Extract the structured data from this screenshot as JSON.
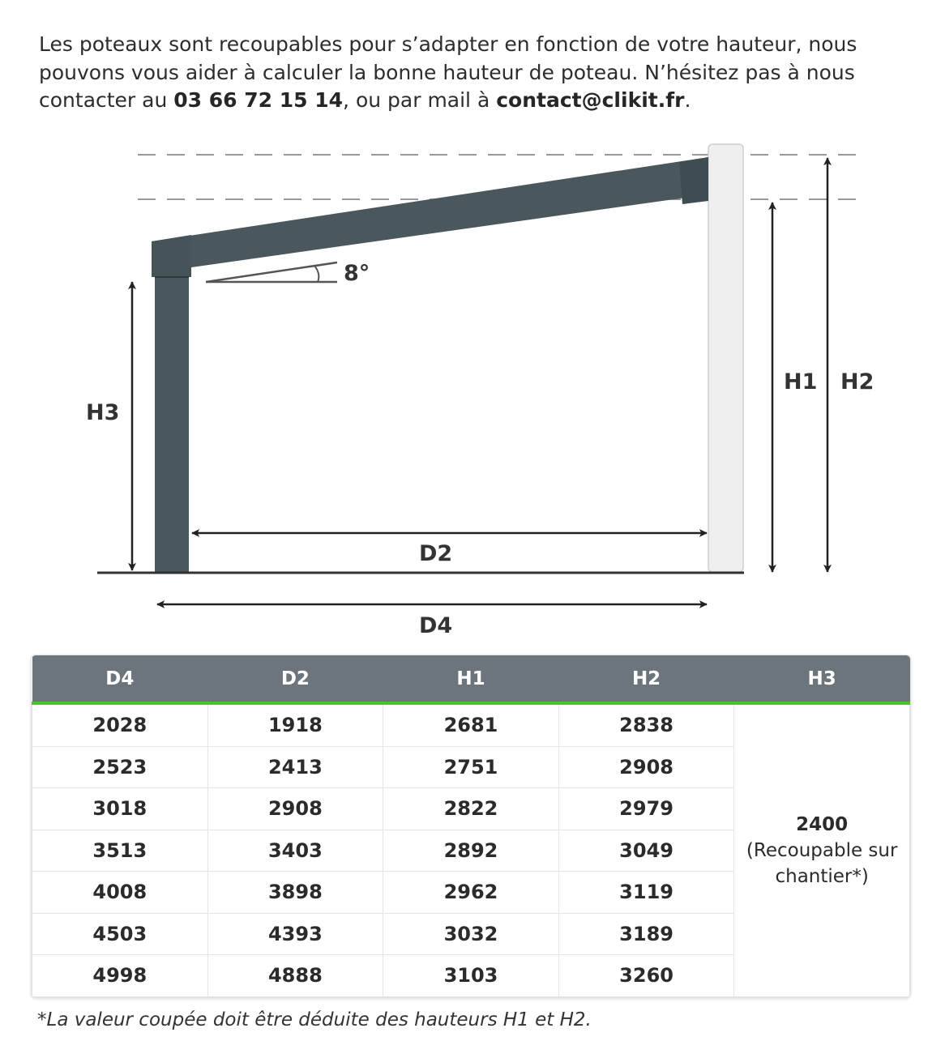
{
  "intro": {
    "text_before_phone": "Les poteaux sont recoupables pour s’adapter en fonction de votre hauteur, nous pouvons vous aider à calculer la bonne hauteur de poteau. N’hésitez pas à nous contacter au ",
    "phone": "03 66 72 15 14",
    "text_between": ", ou par mail à ",
    "email": "contact@clikit.fr",
    "text_after": "."
  },
  "diagram": {
    "angle_label": "8°",
    "labels": {
      "h1": "H1",
      "h2": "H2",
      "h3": "H3",
      "d2": "D2",
      "d4": "D4"
    },
    "colors": {
      "structure": "#4a585e",
      "wall": "#efefef",
      "line": "#222222"
    }
  },
  "table": {
    "headers": [
      "D4",
      "D2",
      "H1",
      "H2",
      "H3"
    ],
    "rows": [
      [
        "2028",
        "1918",
        "2681",
        "2838"
      ],
      [
        "2523",
        "2413",
        "2751",
        "2908"
      ],
      [
        "3018",
        "2908",
        "2822",
        "2979"
      ],
      [
        "3513",
        "3403",
        "2892",
        "3049"
      ],
      [
        "4008",
        "3898",
        "2962",
        "3119"
      ],
      [
        "4503",
        "4393",
        "3032",
        "3189"
      ],
      [
        "4998",
        "4888",
        "3103",
        "3260"
      ]
    ],
    "h3_value": "2400",
    "h3_note": "(Recoupable sur chantier*)",
    "colors": {
      "header_bg": "#6c747c",
      "header_accent": "#4cc22f"
    }
  },
  "footnote": "*La valeur coupée doit être déduite des hauteurs H1 et H2."
}
